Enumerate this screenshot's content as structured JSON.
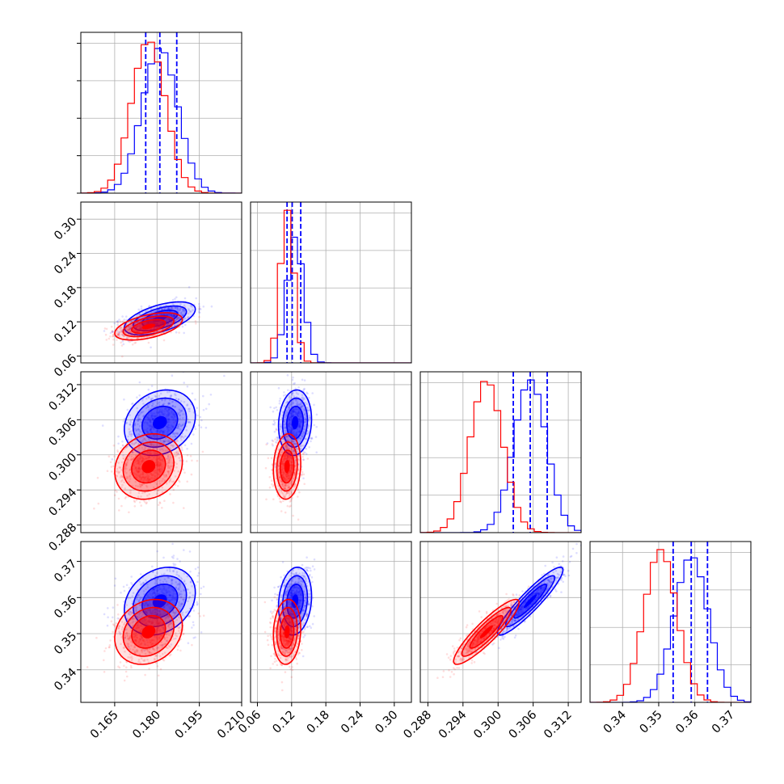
{
  "chart_data": {
    "type": "corner",
    "grid": true,
    "series": [
      {
        "name": "",
        "color": "#0000ff",
        "mean": [
          0.181,
          0.126,
          0.3055,
          0.359
        ],
        "std": [
          0.0063,
          0.0145,
          0.0028,
          0.0047
        ],
        "corr": [
          [
            1,
            0.55,
            0.2,
            0.25
          ],
          [
            0.55,
            1,
            0.1,
            0.15
          ],
          [
            0.2,
            0.1,
            1,
            0.92
          ],
          [
            0.25,
            0.15,
            0.92,
            1
          ]
        ],
        "quantile_lines": [
          [
            0.176,
            0.181,
            0.187
          ],
          [
            0.112,
            0.121,
            0.136
          ],
          [
            0.3026,
            0.3055,
            0.3084
          ],
          [
            0.354,
            0.359,
            0.3635
          ]
        ]
      },
      {
        "name": "",
        "color": "#ff0000",
        "mean": [
          0.177,
          0.112,
          0.298,
          0.3505
        ],
        "std": [
          0.006,
          0.012,
          0.0028,
          0.0045
        ],
        "corr": [
          [
            1,
            0.5,
            0.15,
            0.2
          ],
          [
            0.5,
            1,
            0.1,
            0.1
          ],
          [
            0.15,
            0.1,
            1,
            0.9
          ],
          [
            0.2,
            0.1,
            0.9,
            1
          ]
        ]
      }
    ],
    "parameters": [
      {
        "range": [
          0.153,
          0.21
        ],
        "ticks": [
          "0.165",
          "0.180",
          "0.195",
          "0.210"
        ]
      },
      {
        "range": [
          0.048,
          0.33
        ],
        "ticks": [
          "0.06",
          "0.12",
          "0.18",
          "0.24",
          "0.30"
        ]
      },
      {
        "range": [
          0.2867,
          0.3142
        ],
        "ticks": [
          "0.288",
          "0.294",
          "0.300",
          "0.306",
          "0.312"
        ]
      },
      {
        "range": [
          0.331,
          0.3755
        ],
        "ticks": [
          "0.34",
          "0.35",
          "0.36",
          "0.37"
        ]
      }
    ],
    "contour_levels_sigma": [
      1.0,
      1.5,
      2.0
    ]
  }
}
